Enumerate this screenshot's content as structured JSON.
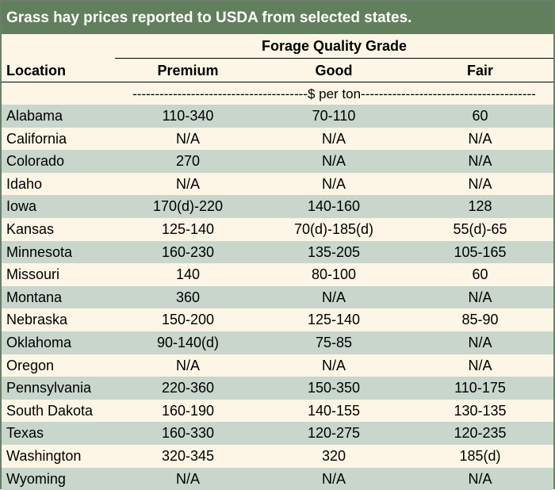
{
  "title": "Grass hay prices reported to USDA from selected states.",
  "header": {
    "group_label": "Forage Quality Grade",
    "location_label": "Location",
    "columns": [
      "Premium",
      "Good",
      "Fair"
    ]
  },
  "unit_label": "$ per ton",
  "colors": {
    "title_bar": "#617f5c",
    "shaded_row": "#c8d6cc",
    "background": "#fdf6e6"
  },
  "rows": [
    {
      "location": "Alabama",
      "premium": "110-340",
      "good": "70-110",
      "fair": "60"
    },
    {
      "location": "California",
      "premium": "N/A",
      "good": "N/A",
      "fair": "N/A"
    },
    {
      "location": "Colorado",
      "premium": "270",
      "good": "N/A",
      "fair": "N/A"
    },
    {
      "location": "Idaho",
      "premium": "N/A",
      "good": "N/A",
      "fair": "N/A"
    },
    {
      "location": "Iowa",
      "premium": "170(d)-220",
      "good": "140-160",
      "fair": "128"
    },
    {
      "location": "Kansas",
      "premium": "125-140",
      "good": "70(d)-185(d)",
      "fair": "55(d)-65"
    },
    {
      "location": "Minnesota",
      "premium": "160-230",
      "good": "135-205",
      "fair": "105-165"
    },
    {
      "location": "Missouri",
      "premium": "140",
      "good": "80-100",
      "fair": "60"
    },
    {
      "location": "Montana",
      "premium": "360",
      "good": "N/A",
      "fair": "N/A"
    },
    {
      "location": "Nebraska",
      "premium": "150-200",
      "good": "125-140",
      "fair": "85-90"
    },
    {
      "location": "Oklahoma",
      "premium": "90-140(d)",
      "good": "75-85",
      "fair": "N/A"
    },
    {
      "location": "Oregon",
      "premium": "N/A",
      "good": "N/A",
      "fair": "N/A"
    },
    {
      "location": "Pennsylvania",
      "premium": "220-360",
      "good": "150-350",
      "fair": "110-175"
    },
    {
      "location": "South Dakota",
      "premium": "160-190",
      "good": "140-155",
      "fair": "130-135"
    },
    {
      "location": "Texas",
      "premium": "160-330",
      "good": "120-275",
      "fair": "120-235"
    },
    {
      "location": "Washington",
      "premium": "320-345",
      "good": "320",
      "fair": "185(d)"
    },
    {
      "location": "Wyoming",
      "premium": "N/A",
      "good": "N/A",
      "fair": "N/A"
    }
  ]
}
